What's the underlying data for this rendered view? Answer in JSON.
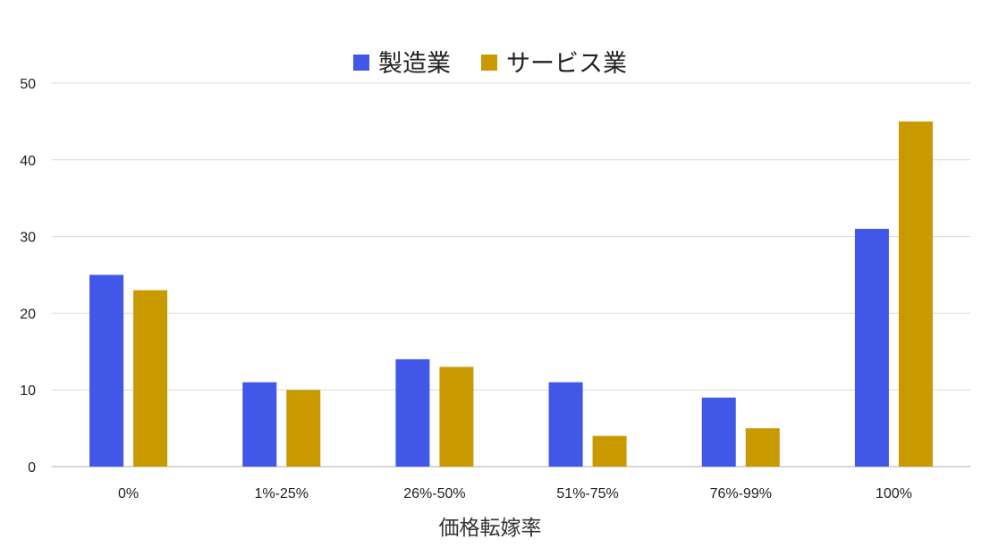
{
  "chart_data": {
    "type": "bar",
    "title": "",
    "xlabel": "価格転嫁率",
    "ylabel": "",
    "categories": [
      "0%",
      "1%-25%",
      "26%-50%",
      "51%-75%",
      "76%-99%",
      "100%"
    ],
    "series": [
      {
        "name": "製造業",
        "color": "#4157e8",
        "values": [
          25,
          11,
          14,
          11,
          9,
          31
        ]
      },
      {
        "name": "サービス業",
        "color": "#c99a00",
        "values": [
          23,
          10,
          13,
          4,
          5,
          45
        ]
      }
    ],
    "ylim": [
      0,
      50
    ],
    "yticks": [
      0,
      10,
      20,
      30,
      40,
      50
    ],
    "grid": true,
    "legend": "top-center"
  }
}
